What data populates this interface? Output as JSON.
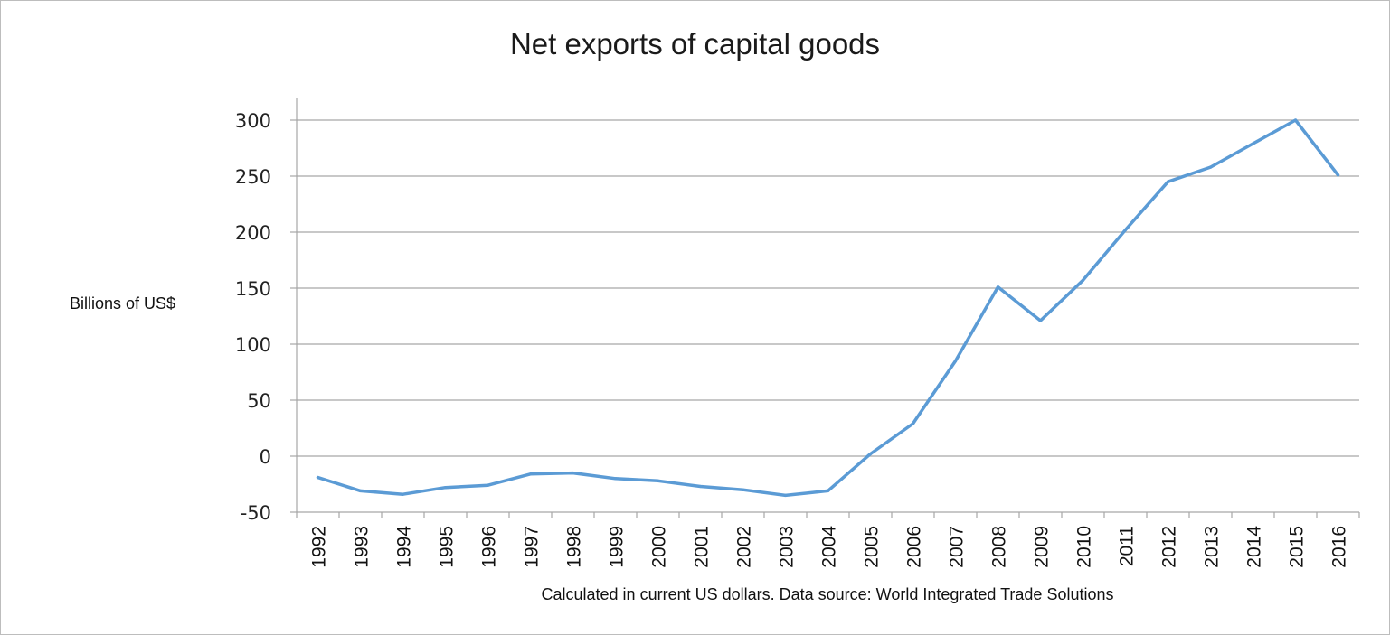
{
  "chart_data": {
    "type": "line",
    "title": "Net exports of capital goods",
    "ylabel": "Billions of US$",
    "xlabel": "",
    "footnote": "Calculated in current US dollars. Data source: World Integrated Trade Solutions",
    "categories": [
      "1992",
      "1993",
      "1994",
      "1995",
      "1996",
      "1997",
      "1998",
      "1999",
      "2000",
      "2001",
      "2002",
      "2003",
      "2004",
      "2005",
      "2006",
      "2007",
      "2008",
      "2009",
      "2010",
      "2011",
      "2012",
      "2013",
      "2014",
      "2015",
      "2016"
    ],
    "yticks": [
      300,
      250,
      200,
      150,
      100,
      50,
      0,
      -50
    ],
    "ylim": [
      -50,
      300
    ],
    "series": [
      {
        "values": [
          -19,
          -31,
          -34,
          -28,
          -26,
          -16,
          -15,
          -20,
          -22,
          -27,
          -30,
          -35,
          -31,
          2,
          29,
          85,
          151,
          121,
          157,
          202,
          245,
          258,
          279,
          300,
          251
        ],
        "color": "#5b9bd5"
      }
    ],
    "grid": true,
    "legend": "none"
  }
}
